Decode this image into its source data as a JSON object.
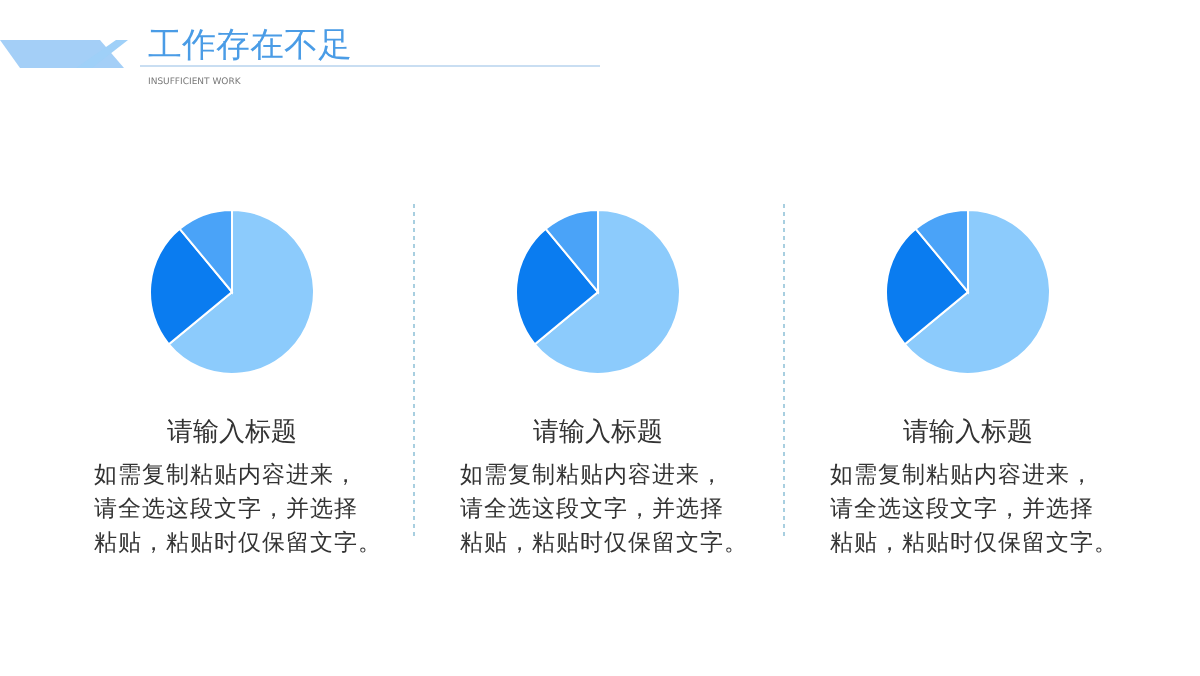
{
  "chart_data": [
    {
      "type": "other",
      "title": "工作存在不足",
      "subtitle": "INSUFFICIENT WORK"
    },
    {
      "type": "pie",
      "title": "请输入标题",
      "categories": [
        null,
        null,
        null
      ],
      "values": [
        64,
        25,
        11
      ],
      "colors": [
        "#8ccbfc",
        "#0a7cf0",
        "#4aa3f8"
      ],
      "annotations": [
        "如需复制粘贴内容进来，",
        "请全选这段文字，并选择",
        "粘贴，粘贴时仅保留文字。"
      ]
    },
    {
      "type": "pie",
      "title": "请输入标题",
      "categories": [
        null,
        null,
        null
      ],
      "values": [
        64,
        25,
        11
      ],
      "colors": [
        "#8ccbfc",
        "#0a7cf0",
        "#4aa3f8"
      ],
      "annotations": [
        "如需复制粘贴内容进来，",
        "请全选这段文字，并选择",
        "粘贴，粘贴时仅保留文字。"
      ]
    },
    {
      "type": "pie",
      "title": "请输入标题",
      "categories": [
        null,
        null,
        null
      ],
      "values": [
        64,
        25,
        11
      ],
      "colors": [
        "#8ccbfc",
        "#0a7cf0",
        "#4aa3f8"
      ],
      "annotations": [
        "如需复制粘贴内容进来，",
        "请全选这段文字，并选择",
        "粘贴，粘贴时仅保留文字。"
      ]
    }
  ]
}
